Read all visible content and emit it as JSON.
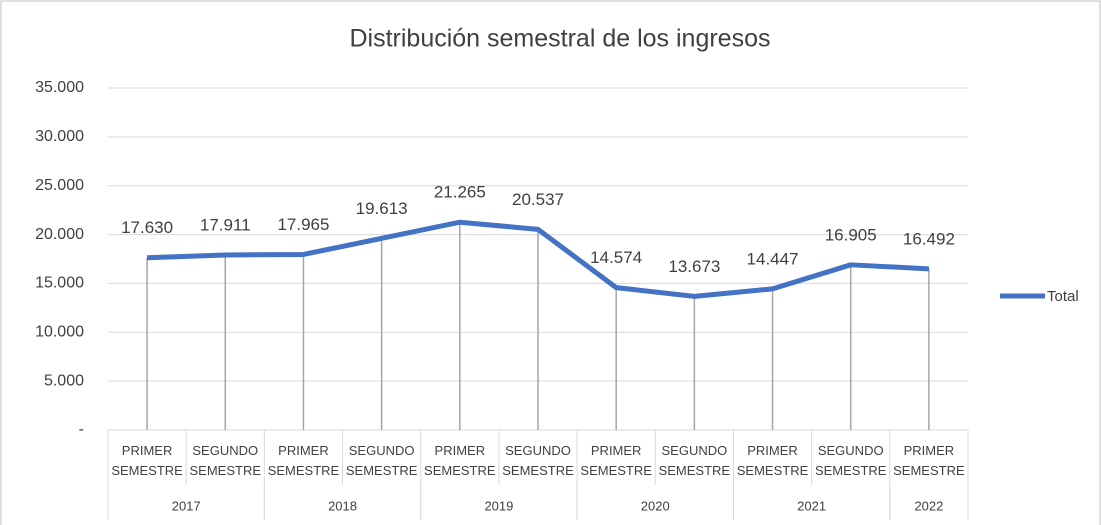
{
  "chart_data": {
    "type": "line",
    "title": "Distribución semestral de los ingresos",
    "categories": [
      "PRIMER SEMESTRE",
      "SEGUNDO SEMESTRE",
      "PRIMER SEMESTRE",
      "SEGUNDO SEMESTRE",
      "PRIMER SEMESTRE",
      "SEGUNDO SEMESTRE",
      "PRIMER SEMESTRE",
      "SEGUNDO SEMESTRE",
      "PRIMER SEMESTRE",
      "SEGUNDO SEMESTRE",
      "PRIMER SEMESTRE"
    ],
    "category_groups": [
      {
        "name": "2017",
        "size": 2
      },
      {
        "name": "2018",
        "size": 2
      },
      {
        "name": "2019",
        "size": 2
      },
      {
        "name": "2020",
        "size": 2
      },
      {
        "name": "2021",
        "size": 2
      },
      {
        "name": "2022",
        "size": 1
      }
    ],
    "series": [
      {
        "name": "Total",
        "color": "#4472c4",
        "values": [
          17630,
          17911,
          17965,
          19613,
          21265,
          20537,
          14574,
          13673,
          14447,
          16905,
          16492
        ],
        "value_labels": [
          "17.630",
          "17.911",
          "17.965",
          "19.613",
          "21.265",
          "20.537",
          "14.574",
          "13.673",
          "14.447",
          "16.905",
          "16.492"
        ]
      }
    ],
    "ylim": [
      0,
      35000
    ],
    "yticks": [
      {
        "value": 0,
        "label": "-"
      },
      {
        "value": 5000,
        "label": "5.000"
      },
      {
        "value": 10000,
        "label": "10.000"
      },
      {
        "value": 15000,
        "label": "15.000"
      },
      {
        "value": 20000,
        "label": "20.000"
      },
      {
        "value": 25000,
        "label": "25.000"
      },
      {
        "value": 30000,
        "label": "30.000"
      },
      {
        "value": 35000,
        "label": "35.000"
      }
    ],
    "grid": true,
    "legend": "right",
    "drop_lines": true
  }
}
